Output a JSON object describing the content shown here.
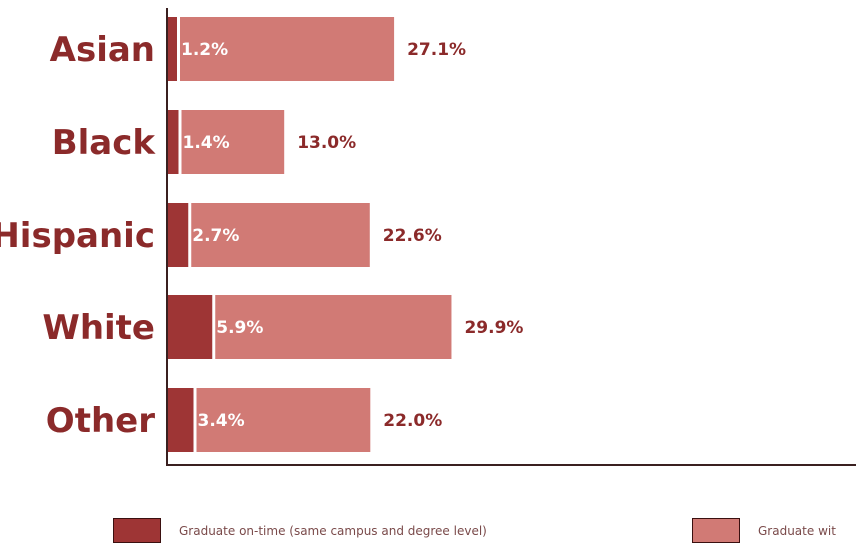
{
  "chart_data": {
    "type": "bar",
    "orientation": "horizontal",
    "stacked": true,
    "categories": [
      "Asian",
      "Black",
      "Hispanic",
      "White",
      "Other"
    ],
    "series": [
      {
        "name": "Graduate on-time (same campus and degree level)",
        "values": [
          1.2,
          1.4,
          2.7,
          5.9,
          3.4
        ],
        "labels": [
          "1.2%",
          "1.4%",
          "2.7%",
          "5.9%",
          "3.4%"
        ],
        "color": "#9e3535"
      },
      {
        "name": "Graduate wit",
        "values": [
          27.1,
          13.0,
          22.6,
          29.9,
          22.0
        ],
        "labels": [
          "27.1%",
          "13.0%",
          "22.6%",
          "29.9%",
          "22.0%"
        ],
        "color": "#d17a75"
      }
    ],
    "grid": false,
    "legend_position": "bottom"
  }
}
